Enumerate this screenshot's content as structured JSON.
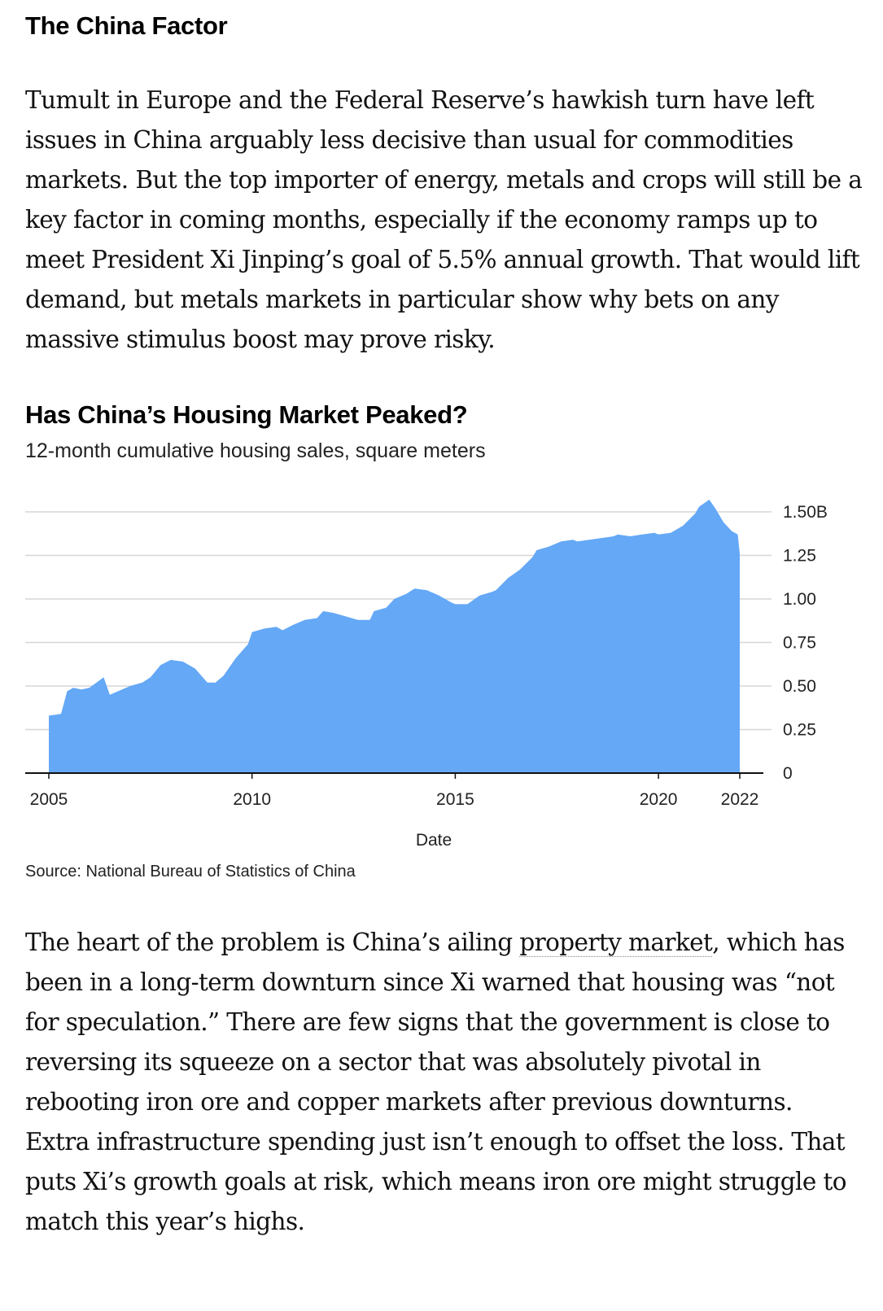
{
  "section_heading": "The China Factor",
  "paragraph1": "Tumult in Europe and the Federal Reserve’s hawkish turn have left issues in China arguably less decisive than usual for commodities markets. But the top importer of energy, metals and crops will still be a key factor in coming months, especially if the economy ramps up to meet President Xi Jinping’s goal of 5.5% annual growth. That would lift demand, but metals markets in particular show why bets on any massive stimulus boost may prove risky.",
  "paragraph2": {
    "before_link": "The heart of the problem is China’s ailing ",
    "link": "property market",
    "after_link": ", which has been in a long-term downturn since Xi warned that housing was “not for speculation.” There are few signs that the government is close to reversing its squeeze on a sector that was absolutely pivotal in rebooting iron ore and copper markets after previous downturns. Extra infrastructure spending just isn’t enough to offset the loss. That puts Xi’s growth goals at risk, which means iron ore might struggle to match this year’s highs."
  },
  "source": "Source: National Bureau of Statistics of China",
  "chart_data": {
    "type": "area",
    "title": "Has China’s Housing Market Peaked?",
    "subtitle": "12-month cumulative housing sales, square meters",
    "xlabel": "Date",
    "ylabel": "",
    "x_ticks": [
      "2005",
      "2010",
      "2015",
      "2020",
      "2022"
    ],
    "y_ticks": [
      "0",
      "0.25",
      "0.50",
      "0.75",
      "1.00",
      "1.25",
      "1.50B"
    ],
    "ylim": [
      0,
      1.5
    ],
    "grid": true,
    "fill_color": "#64a8f6",
    "x": [
      2005.0,
      2005.3,
      2005.45,
      2005.6,
      2005.8,
      2006.0,
      2006.35,
      2006.5,
      2006.6,
      2007.0,
      2007.3,
      2007.5,
      2007.75,
      2008.0,
      2008.3,
      2008.6,
      2008.9,
      2009.1,
      2009.3,
      2009.6,
      2009.9,
      2010.0,
      2010.3,
      2010.6,
      2010.75,
      2011.0,
      2011.3,
      2011.6,
      2011.75,
      2012.0,
      2012.3,
      2012.6,
      2012.9,
      2013.0,
      2013.3,
      2013.5,
      2013.8,
      2014.0,
      2014.3,
      2014.6,
      2014.9,
      2015.0,
      2015.3,
      2015.6,
      2015.9,
      2016.0,
      2016.3,
      2016.6,
      2016.9,
      2017.0,
      2017.3,
      2017.6,
      2017.9,
      2018.0,
      2018.3,
      2018.6,
      2018.9,
      2019.0,
      2019.3,
      2019.6,
      2019.9,
      2020.0,
      2020.3,
      2020.6,
      2020.9,
      2021.0,
      2021.25,
      2021.4,
      2021.6,
      2021.8,
      2021.95,
      2022.0
    ],
    "values": [
      0.33,
      0.34,
      0.47,
      0.49,
      0.48,
      0.49,
      0.55,
      0.45,
      0.46,
      0.5,
      0.52,
      0.55,
      0.62,
      0.65,
      0.64,
      0.6,
      0.52,
      0.52,
      0.56,
      0.66,
      0.74,
      0.81,
      0.83,
      0.84,
      0.82,
      0.85,
      0.88,
      0.89,
      0.93,
      0.92,
      0.9,
      0.88,
      0.88,
      0.93,
      0.95,
      1.0,
      1.03,
      1.06,
      1.05,
      1.02,
      0.98,
      0.97,
      0.97,
      1.02,
      1.04,
      1.05,
      1.12,
      1.17,
      1.24,
      1.28,
      1.3,
      1.33,
      1.34,
      1.33,
      1.34,
      1.35,
      1.36,
      1.37,
      1.36,
      1.37,
      1.38,
      1.37,
      1.38,
      1.42,
      1.49,
      1.53,
      1.57,
      1.52,
      1.44,
      1.39,
      1.37,
      1.26
    ]
  }
}
